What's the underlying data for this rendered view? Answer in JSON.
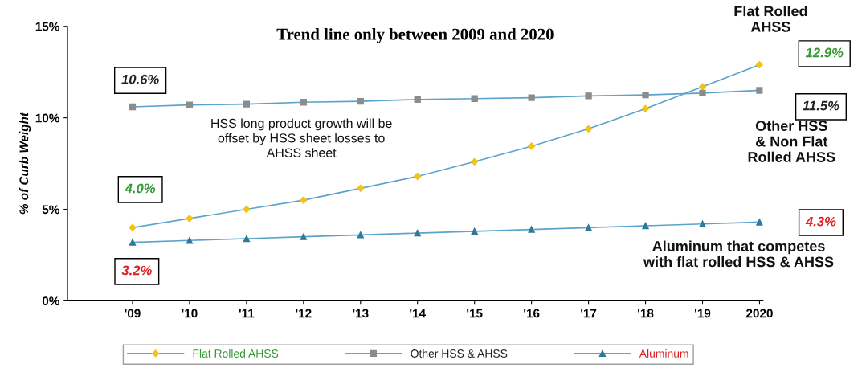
{
  "chart_data": {
    "type": "line",
    "title": "Trend line only between 2009 and 2020",
    "ylabel": "% of Curb Weight",
    "categories": [
      "'09",
      "'10",
      "'11",
      "'12",
      "'13",
      "'14",
      "'15",
      "'16",
      "'17",
      "'18",
      "'19",
      "2020"
    ],
    "series": [
      {
        "name": "Flat Rolled AHSS",
        "color": "#f2c31a",
        "marker": "diamond",
        "values": [
          4.0,
          4.5,
          5.0,
          5.5,
          6.15,
          6.8,
          7.6,
          8.45,
          9.4,
          10.5,
          11.7,
          12.9
        ]
      },
      {
        "name": "Other HSS & AHSS",
        "color": "#8c8c8c",
        "marker": "square",
        "values": [
          10.6,
          10.7,
          10.75,
          10.85,
          10.9,
          11.0,
          11.05,
          11.1,
          11.2,
          11.25,
          11.35,
          11.5
        ]
      },
      {
        "name": "Aluminum",
        "color": "#2f7a9a",
        "marker": "triangle",
        "values": [
          3.2,
          3.3,
          3.4,
          3.5,
          3.6,
          3.7,
          3.8,
          3.9,
          4.0,
          4.1,
          4.2,
          4.3
        ]
      }
    ],
    "ylim": [
      0,
      15
    ],
    "yticks": [
      {
        "value": 0,
        "label": "0%"
      },
      {
        "value": 5,
        "label": "5%"
      },
      {
        "value": 10,
        "label": "10%"
      },
      {
        "value": 15,
        "label": "15%"
      }
    ],
    "grid": false,
    "legend": "bottom",
    "annotations": [
      "10.6%",
      "4.0%",
      "3.2%",
      "12.9%",
      "11.5%",
      "4.3%",
      "Flat Rolled\nAHSS",
      "Other HSS\n& Non Flat\nRolled AHSS",
      "Aluminum that competes\nwith flat rolled HSS & AHSS",
      "HSS long product growth will be\noffset by HSS sheet losses to\nAHSS sheet"
    ]
  }
}
